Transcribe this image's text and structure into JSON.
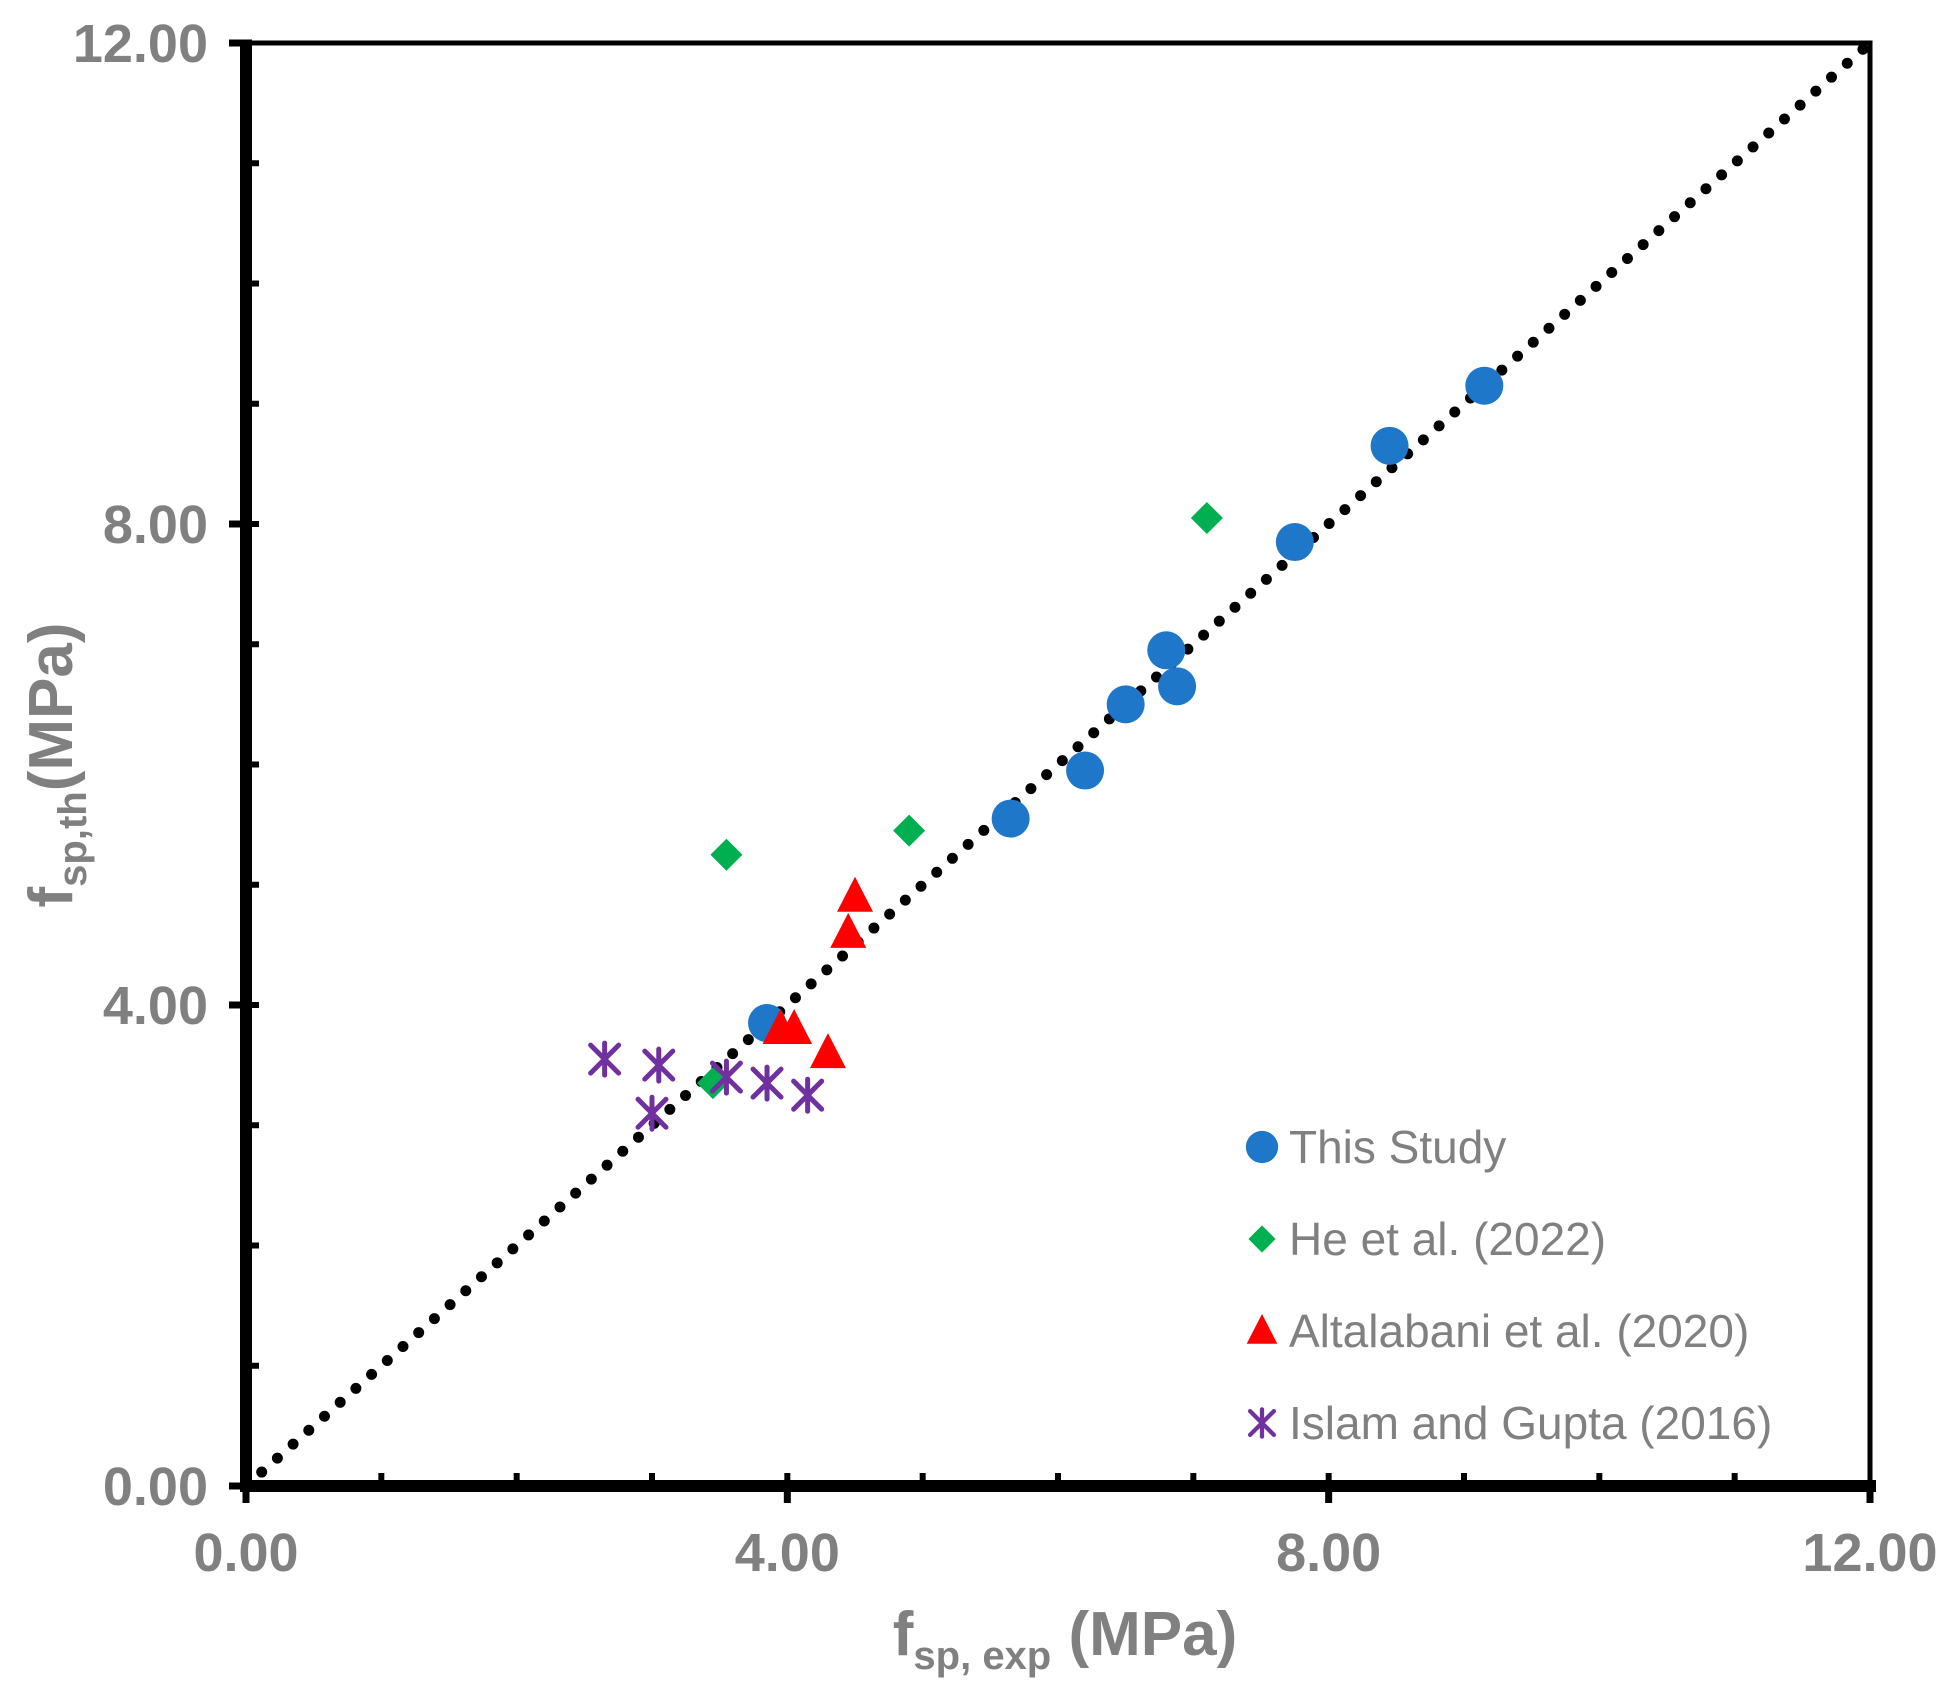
{
  "chart_data": {
    "type": "scatter",
    "xlabel": {
      "main": "f",
      "sub": "sp, exp",
      "unit": " (MPa)"
    },
    "ylabel": {
      "main": "f",
      "sub": "sp,th",
      "unit": "(MPa)"
    },
    "xlim": [
      0,
      12
    ],
    "ylim": [
      0,
      12
    ],
    "x_tick_labels": [
      "0.00",
      "4.00",
      "8.00",
      "12.00"
    ],
    "y_tick_labels": [
      "0.00",
      "4.00",
      "8.00",
      "12.00"
    ],
    "legend_position": "bottom-right",
    "reference_line": {
      "style": "dotted",
      "color": "#000000",
      "from": [
        0,
        0
      ],
      "to": [
        12,
        12
      ]
    },
    "series": [
      {
        "name": "This Study",
        "marker": "circle",
        "color": "#1F77C9",
        "points": [
          [
            3.85,
            3.85
          ],
          [
            5.65,
            5.55
          ],
          [
            6.2,
            5.95
          ],
          [
            6.5,
            6.5
          ],
          [
            6.8,
            6.95
          ],
          [
            6.88,
            6.65
          ],
          [
            7.75,
            7.85
          ],
          [
            8.45,
            8.65
          ],
          [
            9.15,
            9.15
          ]
        ]
      },
      {
        "name": "He et al. (2022)",
        "marker": "diamond",
        "color": "#00B050",
        "points": [
          [
            3.45,
            3.35
          ],
          [
            3.55,
            5.25
          ],
          [
            4.9,
            5.45
          ],
          [
            7.1,
            8.05
          ]
        ]
      },
      {
        "name": "Altalabani et al. (2020)",
        "marker": "triangle",
        "color": "#FF0000",
        "points": [
          [
            3.95,
            3.8
          ],
          [
            4.05,
            3.8
          ],
          [
            4.3,
            3.6
          ],
          [
            4.45,
            4.6
          ],
          [
            4.5,
            4.9
          ]
        ]
      },
      {
        "name": "Islam and Gupta (2016)",
        "marker": "asterisk",
        "color": "#7030A0",
        "points": [
          [
            2.65,
            3.55
          ],
          [
            3.0,
            3.1
          ],
          [
            3.05,
            3.5
          ],
          [
            3.55,
            3.4
          ],
          [
            3.85,
            3.35
          ],
          [
            4.15,
            3.25
          ]
        ]
      }
    ]
  }
}
